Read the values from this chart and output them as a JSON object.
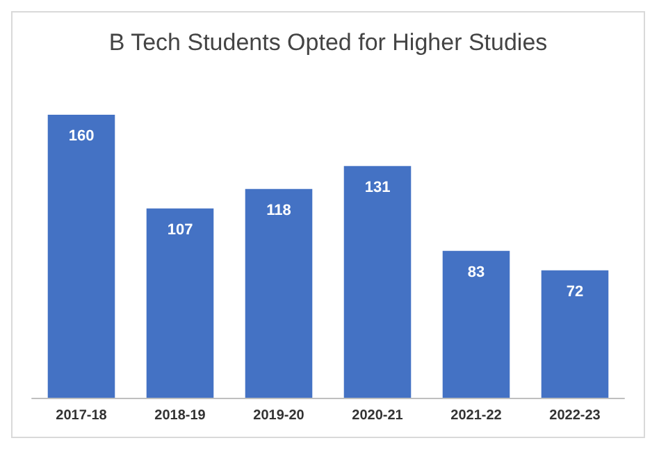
{
  "chart_data": {
    "type": "bar",
    "title": "B Tech Students Opted for Higher Studies",
    "categories": [
      "2017-18",
      "2018-19",
      "2019-20",
      "2020-21",
      "2021-22",
      "2022-23"
    ],
    "values": [
      160,
      107,
      118,
      131,
      83,
      72
    ],
    "color": "#4472c4",
    "data_labels": true
  }
}
